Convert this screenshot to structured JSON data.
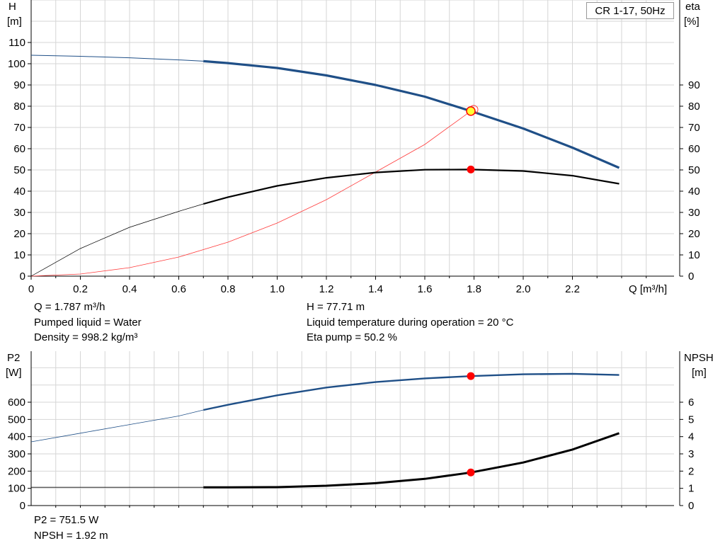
{
  "legend_label": "CR 1-17, 50Hz",
  "info": {
    "q": "Q = 1.787 m³/h",
    "h": "H = 77.71 m",
    "liquid": "Pumped liquid = Water",
    "temp": "Liquid temperature during operation = 20 °C",
    "density": "Density = 998.2 kg/m³",
    "eta": "Eta pump = 50.2 %",
    "p2": "P2 = 751.5 W",
    "npsh": "NPSH = 1.92 m"
  },
  "colors": {
    "head": "#1f4f87",
    "eta": "#000000",
    "system": "#ff3b3b",
    "p2": "#1f4f87",
    "npsh": "#000000",
    "dot": "#ff0000",
    "grid": "#d6d6d6"
  },
  "chart_data": [
    {
      "type": "line",
      "xlabel": "Q [m³/h]",
      "ylabel_left": "H\n[m]",
      "ylabel_right": "eta\n[%]",
      "xlim": [
        0,
        2.6
      ],
      "ylim": [
        0,
        110
      ],
      "x_ticks": [
        "0",
        "0.2",
        "0.4",
        "0.6",
        "0.8",
        "1.0",
        "1.2",
        "1.4",
        "1.6",
        "1.8",
        "2.0",
        "2.2"
      ],
      "y_left_ticks": [
        0,
        10,
        20,
        30,
        40,
        50,
        60,
        70,
        80,
        90,
        100,
        110
      ],
      "y_right_ticks": [
        0,
        10,
        20,
        30,
        40,
        50,
        60,
        70,
        80,
        90
      ],
      "series": [
        {
          "key": "head",
          "x": [
            0,
            0.2,
            0.4,
            0.6,
            0.7,
            0.8,
            1.0,
            1.2,
            1.4,
            1.6,
            1.787,
            2.0,
            2.2,
            2.39
          ],
          "y": [
            104,
            103.5,
            102.8,
            101.8,
            101.2,
            100.3,
            98,
            94.5,
            90,
            84.5,
            77.7,
            69.5,
            60.5,
            51
          ]
        },
        {
          "key": "eta",
          "x": [
            0,
            0.2,
            0.4,
            0.6,
            0.7,
            0.8,
            1.0,
            1.2,
            1.4,
            1.6,
            1.787,
            2.0,
            2.2,
            2.39
          ],
          "y": [
            0,
            13,
            23,
            30.5,
            34,
            37.2,
            42.5,
            46.3,
            48.8,
            50.1,
            50.2,
            49.5,
            47.3,
            43.5
          ]
        },
        {
          "key": "system",
          "x": [
            0,
            0.2,
            0.4,
            0.6,
            0.8,
            1.0,
            1.2,
            1.4,
            1.6,
            1.787
          ],
          "y": [
            0,
            1,
            4,
            9,
            16,
            25,
            36,
            49,
            62,
            77.7
          ]
        }
      ],
      "operating_point": {
        "q": 1.787,
        "h": 77.71,
        "eta": 50.2
      }
    },
    {
      "type": "line",
      "xlabel": "",
      "ylabel_left": "P2\n[W]",
      "ylabel_right": "NPSH\n[m]",
      "xlim": [
        0,
        2.6
      ],
      "ylim_left": [
        0,
        800
      ],
      "ylim_right": [
        0,
        8
      ],
      "y_left_ticks": [
        0,
        100,
        200,
        300,
        400,
        500,
        600
      ],
      "y_right_ticks": [
        0,
        1,
        2,
        3,
        4,
        5,
        6
      ],
      "series": [
        {
          "key": "p2",
          "x": [
            0,
            0.2,
            0.4,
            0.6,
            0.7,
            0.8,
            1.0,
            1.2,
            1.4,
            1.6,
            1.787,
            2.0,
            2.2,
            2.39
          ],
          "y": [
            370,
            420,
            470,
            520,
            555,
            585,
            640,
            685,
            717,
            738,
            751.5,
            762,
            765,
            758
          ]
        },
        {
          "key": "npsh",
          "x": [
            0,
            0.2,
            0.4,
            0.6,
            0.7,
            0.8,
            1.0,
            1.2,
            1.4,
            1.6,
            1.787,
            2.0,
            2.2,
            2.39
          ],
          "y": [
            1.06,
            1.06,
            1.06,
            1.06,
            1.06,
            1.06,
            1.07,
            1.15,
            1.3,
            1.55,
            1.92,
            2.5,
            3.25,
            4.2
          ]
        }
      ],
      "operating_point": {
        "q": 1.787,
        "p2": 751.5,
        "npsh": 1.92
      }
    }
  ]
}
